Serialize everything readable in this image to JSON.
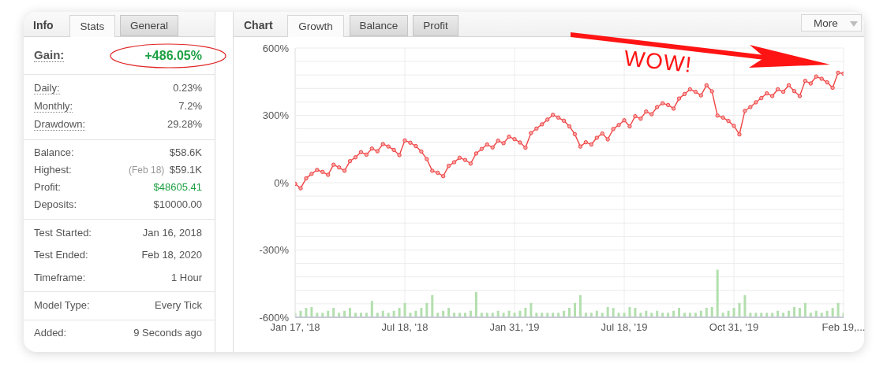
{
  "chart_data": [
    {
      "type": "other",
      "title": "Info",
      "annotations": [
        "Stats",
        "General",
        "Gain:",
        "+486.05%",
        "Daily:",
        "0.23%",
        "Monthly:",
        "7.2%",
        "Drawdown:",
        "29.28%",
        "Balance:",
        "$58.6K",
        "Highest:",
        "(Feb 18)",
        "$59.1K",
        "Profit:",
        "$48605.41",
        "Deposits:",
        "$10000.00",
        "Test Started:",
        "Jan 16, 2018",
        "Test Ended:",
        "Feb 18, 2020",
        "Timeframe:",
        "1 Hour",
        "Model Type:",
        "Every Tick",
        "Added:",
        "9 Seconds ago"
      ]
    },
    {
      "type": "line",
      "title": "Chart",
      "annotations": [
        "Growth",
        "Balance",
        "Profit",
        "More",
        "WOW!"
      ],
      "categories": [
        "Jan 17, '18",
        null,
        null,
        null,
        null,
        null,
        null,
        null,
        null,
        null,
        null,
        null,
        null,
        null,
        null,
        null,
        null,
        null,
        null,
        null,
        "Jul 18, '18",
        null,
        null,
        null,
        null,
        null,
        null,
        null,
        null,
        null,
        null,
        null,
        null,
        null,
        null,
        null,
        null,
        null,
        null,
        null,
        "Jan 31, '19",
        null,
        null,
        null,
        null,
        null,
        null,
        null,
        null,
        null,
        null,
        null,
        null,
        null,
        null,
        null,
        null,
        null,
        null,
        null,
        "Jul 18, '19",
        null,
        null,
        null,
        null,
        null,
        null,
        null,
        null,
        null,
        null,
        null,
        null,
        null,
        null,
        null,
        null,
        null,
        null,
        null,
        "Oct 31, '19",
        null,
        null,
        null,
        null,
        null,
        null,
        null,
        null,
        null,
        null,
        null,
        null,
        null,
        null,
        null,
        null,
        null,
        null,
        null,
        "Feb 19,..."
      ],
      "series": [
        {
          "type": "bar",
          "color": "#b3dfae",
          "values": [
            20,
            29,
            42,
            46,
            20,
            20,
            29,
            42,
            20,
            29,
            42,
            20,
            20,
            20,
            73,
            20,
            29,
            20,
            29,
            42,
            64,
            20,
            29,
            42,
            64,
            99,
            20,
            29,
            42,
            20,
            20,
            20,
            29,
            113,
            20,
            20,
            20,
            29,
            20,
            29,
            20,
            29,
            42,
            64,
            20,
            20,
            20,
            20,
            20,
            29,
            42,
            64,
            99,
            20,
            20,
            29,
            20,
            46,
            42,
            20,
            20,
            46,
            42,
            20,
            29,
            20,
            29,
            20,
            20,
            29,
            42,
            20,
            20,
            20,
            29,
            42,
            46,
            212,
            20,
            29,
            42,
            64,
            99,
            20,
            20,
            20,
            20,
            20,
            29,
            20,
            29,
            46,
            42,
            64,
            20,
            29,
            20,
            29,
            42,
            64,
            20
          ],
          "base": [
            -600,
            -600,
            -600,
            -600,
            -600,
            -600,
            -600,
            -600,
            -600,
            -600,
            -600,
            -600,
            -600,
            -600,
            -600,
            -600,
            -600,
            -600,
            -600,
            -600,
            -600,
            -600,
            -600,
            -600,
            -600,
            -600,
            -600,
            -600,
            -600,
            -600,
            -600,
            -600,
            -600,
            -600,
            -600,
            -600,
            -600,
            -600,
            -600,
            -600,
            -600,
            -600,
            -600,
            -600,
            -600,
            -600,
            -600,
            -600,
            -600,
            -600,
            -600,
            -600,
            -600,
            -600,
            -600,
            -600,
            -600,
            -600,
            -600,
            -600,
            -600,
            -600,
            -600,
            -600,
            -600,
            -600,
            -600,
            -600,
            -600,
            -600,
            -600,
            -600,
            -600,
            -600,
            -600,
            -600,
            -600,
            -600,
            -600,
            -600,
            -600,
            -600,
            -600,
            -600,
            -600,
            -600,
            -600,
            -600,
            -600,
            -600,
            -600,
            -600,
            -600,
            -600,
            -600,
            -600,
            -600,
            -600,
            -600,
            -600,
            -600
          ]
        },
        {
          "type": "line",
          "color": "#ef4444",
          "values": [
            -5,
            -25,
            19,
            39,
            57,
            48,
            35,
            80,
            68,
            53,
            96,
            113,
            136,
            125,
            152,
            140,
            172,
            161,
            146,
            123,
            188,
            178,
            163,
            139,
            105,
            53,
            44,
            29,
            75,
            91,
            111,
            101,
            85,
            130,
            150,
            170,
            157,
            187,
            176,
            205,
            194,
            179,
            156,
            221,
            241,
            260,
            281,
            302,
            290,
            276,
            251,
            216,
            161,
            180,
            170,
            200,
            219,
            193,
            239,
            257,
            278,
            251,
            296,
            285,
            317,
            305,
            337,
            354,
            346,
            330,
            375,
            395,
            416,
            405,
            389,
            434,
            407,
            299,
            290,
            275,
            253,
            215,
            320,
            337,
            358,
            377,
            398,
            386,
            416,
            405,
            434,
            408,
            386,
            454,
            442,
            473,
            463,
            447,
            423,
            490,
            486
          ]
        }
      ],
      "ylim": [
        -600,
        600
      ],
      "yticks": [
        {
          "value": -600,
          "label": "-600%"
        },
        {
          "value": -540,
          "label": null
        },
        {
          "value": -480,
          "label": null
        },
        {
          "value": -420,
          "label": null
        },
        {
          "value": -360,
          "label": null
        },
        {
          "value": -300,
          "label": "-300%"
        },
        {
          "value": -240,
          "label": null
        },
        {
          "value": -180,
          "label": null
        },
        {
          "value": -120,
          "label": null
        },
        {
          "value": -60,
          "label": null
        },
        {
          "value": 0,
          "label": "0%"
        },
        {
          "value": 60,
          "label": null
        },
        {
          "value": 120,
          "label": null
        },
        {
          "value": 180,
          "label": null
        },
        {
          "value": 240,
          "label": null
        },
        {
          "value": 300,
          "label": "300%"
        },
        {
          "value": 360,
          "label": null
        },
        {
          "value": 420,
          "label": null
        },
        {
          "value": 480,
          "label": null
        },
        {
          "value": 540,
          "label": null
        },
        {
          "value": 600,
          "label": "600%"
        }
      ],
      "grid": true,
      "marker": "circle"
    }
  ]
}
